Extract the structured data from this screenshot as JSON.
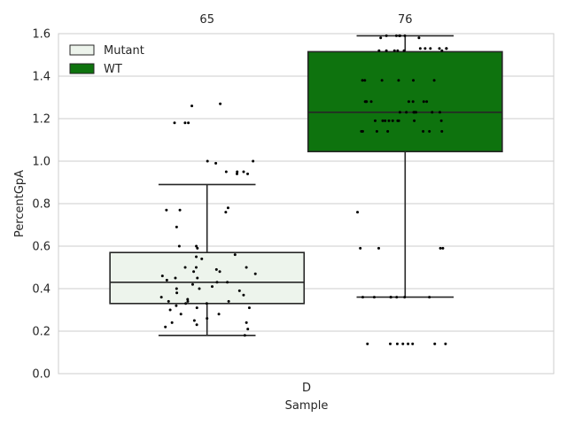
{
  "chart_data": {
    "type": "box",
    "xlabel": "Sample",
    "ylabel": "PercentGpA",
    "ylim": [
      0,
      1.6
    ],
    "yticks": [
      0.0,
      0.2,
      0.4,
      0.6,
      0.8,
      1.0,
      1.2,
      1.4,
      1.6
    ],
    "ytick_labels": [
      "0.0",
      "0.2",
      "0.4",
      "0.6",
      "0.8",
      "1.0",
      "1.2",
      "1.4",
      "1.6"
    ],
    "categories": [
      "D"
    ],
    "grid": true,
    "legend_position": "top-left",
    "series": [
      {
        "name": "Mutant",
        "color": "#edf4ec",
        "count_label": "65",
        "box": {
          "whisker_low": 0.18,
          "q1": 0.33,
          "median": 0.43,
          "q3": 0.57,
          "whisker_high": 0.89
        },
        "points": [
          0.18,
          0.21,
          0.22,
          0.23,
          0.24,
          0.24,
          0.25,
          0.26,
          0.28,
          0.28,
          0.3,
          0.31,
          0.31,
          0.32,
          0.33,
          0.33,
          0.34,
          0.34,
          0.34,
          0.35,
          0.36,
          0.37,
          0.38,
          0.39,
          0.4,
          0.4,
          0.41,
          0.42,
          0.43,
          0.43,
          0.44,
          0.45,
          0.45,
          0.46,
          0.47,
          0.48,
          0.48,
          0.49,
          0.5,
          0.5,
          0.5,
          0.54,
          0.55,
          0.56,
          0.59,
          0.6,
          0.6,
          0.69,
          0.76,
          0.77,
          0.77,
          0.78,
          0.94,
          0.94,
          0.95,
          0.95,
          0.95,
          0.99,
          1.0,
          1.0,
          1.18,
          1.18,
          1.18,
          1.26,
          1.27
        ]
      },
      {
        "name": "WT",
        "color": "#0e730e",
        "count_label": "76",
        "box": {
          "whisker_low": 0.36,
          "q1": 1.045,
          "median": 1.23,
          "q3": 1.515,
          "whisker_high": 1.59
        },
        "points": [
          0.14,
          0.14,
          0.14,
          0.14,
          0.14,
          0.14,
          0.14,
          0.14,
          0.36,
          0.36,
          0.36,
          0.36,
          0.36,
          0.36,
          0.36,
          0.59,
          0.59,
          0.59,
          0.59,
          0.76,
          1.14,
          1.14,
          1.14,
          1.14,
          1.14,
          1.14,
          1.14,
          1.19,
          1.19,
          1.19,
          1.19,
          1.19,
          1.19,
          1.19,
          1.19,
          1.19,
          1.23,
          1.23,
          1.23,
          1.23,
          1.23,
          1.23,
          1.23,
          1.28,
          1.28,
          1.28,
          1.28,
          1.28,
          1.28,
          1.28,
          1.28,
          1.38,
          1.38,
          1.38,
          1.38,
          1.38,
          1.38,
          1.52,
          1.52,
          1.52,
          1.52,
          1.52,
          1.52,
          1.53,
          1.53,
          1.53,
          1.53,
          1.53,
          1.53,
          1.58,
          1.58,
          1.59,
          1.59,
          1.59,
          1.59,
          1.59
        ]
      }
    ]
  }
}
